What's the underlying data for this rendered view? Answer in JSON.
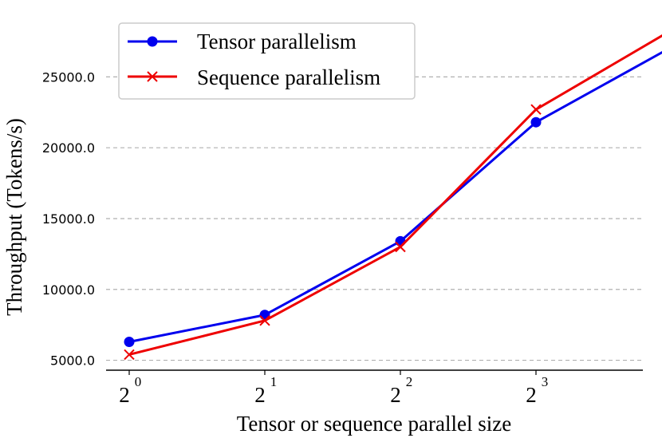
{
  "chart_data": {
    "type": "line",
    "xlabel": "Tensor or sequence parallel size",
    "ylabel": "Throughput (Tokens/s)",
    "x": [
      1,
      2,
      4,
      8,
      16
    ],
    "x_scale": "log2",
    "x_ticks": [
      {
        "base": "2",
        "exp": "0"
      },
      {
        "base": "2",
        "exp": "1"
      },
      {
        "base": "2",
        "exp": "2"
      },
      {
        "base": "2",
        "exp": "3"
      }
    ],
    "y_ticks": [
      "5000.0",
      "10000.0",
      "15000.0",
      "20000.0",
      "25000.0"
    ],
    "ylim": [
      4300,
      29300
    ],
    "grid": "horizontal-dashed",
    "legend_position": "top-left",
    "series": [
      {
        "name": "Tensor parallelism",
        "color": "#0000ee",
        "marker": "circle",
        "values": [
          6300,
          8200,
          13400,
          21800,
          27100
        ]
      },
      {
        "name": "Sequence parallelism",
        "color": "#ee0000",
        "marker": "x",
        "values": [
          5400,
          7800,
          13000,
          22700,
          28300
        ]
      }
    ]
  }
}
